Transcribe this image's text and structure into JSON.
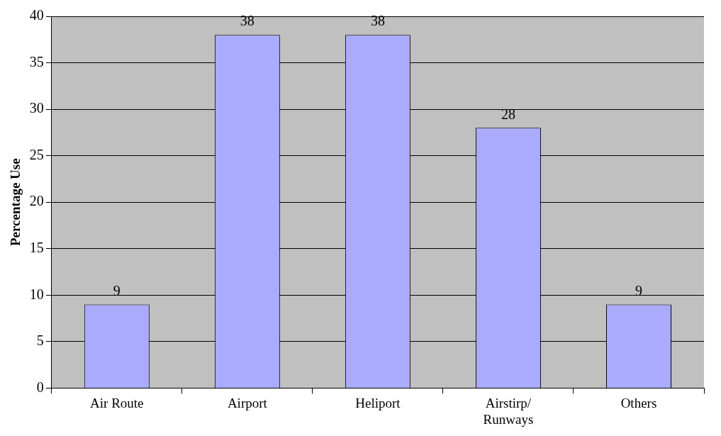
{
  "chart_data": {
    "type": "bar",
    "ylabel": "Percentage Use",
    "categories": [
      "Air Route",
      "Airport",
      "Heliport",
      "Airstirp/ Runways",
      "Others"
    ],
    "values": [
      9,
      38,
      38,
      28,
      9
    ],
    "color": "#aaaaff",
    "ylim": [
      0,
      40
    ],
    "yticks": [
      0,
      5,
      10,
      15,
      20,
      25,
      30,
      35,
      40
    ],
    "grid": "y",
    "data_labels": true
  }
}
